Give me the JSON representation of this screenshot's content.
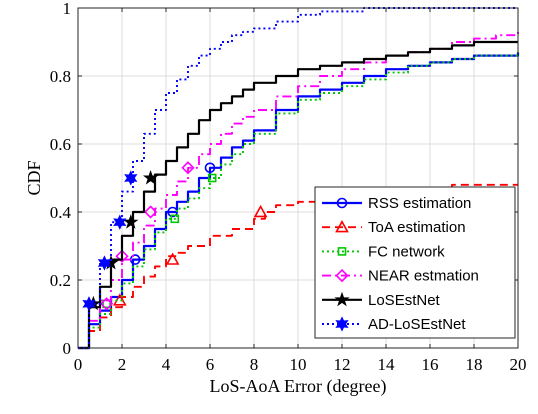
{
  "chart_data": {
    "type": "line",
    "xlabel": "LoS-AoA Error (degree)",
    "ylabel": "CDF",
    "xlim": [
      0,
      20
    ],
    "ylim": [
      0,
      1
    ],
    "xticks": [
      0,
      2,
      4,
      6,
      8,
      10,
      12,
      14,
      16,
      18,
      20
    ],
    "yticks": [
      0,
      0.2,
      0.4,
      0.6,
      0.8,
      1
    ],
    "xtick_labels": [
      "0",
      "2",
      "4",
      "6",
      "8",
      "10",
      "12",
      "14",
      "16",
      "18",
      "20"
    ],
    "ytick_labels": [
      "0",
      "0.2",
      "0.4",
      "0.6",
      "0.8",
      "1"
    ],
    "grid": true,
    "legend_position": "bottom-right",
    "series": [
      {
        "name": "RSS estimation",
        "color": "#0000ff",
        "dash": "solid",
        "marker": "circle",
        "x": [
          0,
          0.5,
          1,
          1.5,
          2,
          2.5,
          3,
          3.5,
          4,
          4.5,
          5,
          5.5,
          6,
          6.5,
          7,
          7.5,
          8,
          9,
          10,
          11,
          12,
          13,
          14,
          15,
          16,
          17,
          18,
          19,
          20
        ],
        "y": [
          0,
          0.07,
          0.11,
          0.15,
          0.2,
          0.26,
          0.3,
          0.35,
          0.4,
          0.43,
          0.46,
          0.5,
          0.53,
          0.56,
          0.59,
          0.61,
          0.64,
          0.7,
          0.74,
          0.76,
          0.78,
          0.8,
          0.82,
          0.83,
          0.84,
          0.85,
          0.86,
          0.86,
          0.87
        ],
        "marker_x": [
          2.6,
          4.3,
          6.0
        ],
        "marker_y": [
          0.26,
          0.4,
          0.53
        ]
      },
      {
        "name": "ToA estimation",
        "color": "#ff0000",
        "dash": "dash",
        "marker": "triangle",
        "x": [
          0,
          0.5,
          1,
          1.5,
          2,
          2.5,
          3,
          3.5,
          4,
          4.5,
          5,
          6,
          7,
          8,
          8.5,
          9,
          10,
          11,
          12,
          13,
          14,
          15,
          16,
          17,
          18,
          19,
          20
        ],
        "y": [
          0,
          0.05,
          0.09,
          0.12,
          0.15,
          0.18,
          0.21,
          0.24,
          0.27,
          0.28,
          0.3,
          0.33,
          0.35,
          0.38,
          0.4,
          0.42,
          0.43,
          0.44,
          0.44,
          0.45,
          0.46,
          0.46,
          0.47,
          0.48,
          0.48,
          0.48,
          0.48
        ],
        "marker_x": [
          1.9,
          4.3,
          8.3
        ],
        "marker_y": [
          0.14,
          0.26,
          0.4
        ]
      },
      {
        "name": "FC network",
        "color": "#00c800",
        "dash": "dot",
        "marker": "square",
        "x": [
          0,
          0.5,
          1,
          1.5,
          2,
          2.5,
          3,
          3.5,
          4,
          4.5,
          5,
          5.5,
          6,
          6.5,
          7,
          7.5,
          8,
          9,
          10,
          11,
          12,
          13,
          14,
          15,
          16,
          17,
          18,
          19,
          20
        ],
        "y": [
          0,
          0.06,
          0.1,
          0.14,
          0.19,
          0.24,
          0.29,
          0.34,
          0.38,
          0.41,
          0.44,
          0.47,
          0.5,
          0.54,
          0.57,
          0.6,
          0.63,
          0.69,
          0.73,
          0.75,
          0.77,
          0.79,
          0.81,
          0.83,
          0.84,
          0.85,
          0.86,
          0.86,
          0.87
        ],
        "marker_x": [
          1.3,
          4.4,
          6.1
        ],
        "marker_y": [
          0.13,
          0.38,
          0.5
        ]
      },
      {
        "name": "NEAR estmation",
        "color": "#ff00ff",
        "dash": "dashdot",
        "marker": "diamond",
        "x": [
          0,
          0.5,
          1,
          1.5,
          2,
          2.5,
          3,
          3.5,
          4,
          4.5,
          5,
          5.5,
          6,
          6.5,
          7,
          7.5,
          8,
          9,
          10,
          11,
          12,
          13,
          14,
          15,
          16,
          17,
          18,
          19,
          20
        ],
        "y": [
          0,
          0.08,
          0.14,
          0.2,
          0.26,
          0.31,
          0.36,
          0.41,
          0.45,
          0.49,
          0.53,
          0.57,
          0.6,
          0.63,
          0.66,
          0.68,
          0.7,
          0.74,
          0.77,
          0.8,
          0.82,
          0.84,
          0.86,
          0.87,
          0.88,
          0.9,
          0.91,
          0.92,
          0.93
        ],
        "marker_x": [
          1.3,
          2.0,
          3.3,
          5.0
        ],
        "marker_y": [
          0.13,
          0.27,
          0.4,
          0.53
        ]
      },
      {
        "name": "LoSEstNet",
        "color": "#000000",
        "dash": "solid",
        "marker": "star",
        "x": [
          0,
          0.5,
          1,
          1.5,
          2,
          2.5,
          3,
          3.5,
          4,
          4.5,
          5,
          5.5,
          6,
          6.5,
          7,
          7.5,
          8,
          9,
          10,
          11,
          12,
          13,
          14,
          15,
          16,
          17,
          18,
          19,
          20
        ],
        "y": [
          0,
          0.12,
          0.18,
          0.26,
          0.33,
          0.4,
          0.46,
          0.51,
          0.55,
          0.59,
          0.63,
          0.67,
          0.7,
          0.72,
          0.74,
          0.76,
          0.78,
          0.8,
          0.82,
          0.83,
          0.84,
          0.85,
          0.86,
          0.87,
          0.88,
          0.89,
          0.9,
          0.9,
          0.9
        ],
        "marker_x": [
          0.7,
          1.5,
          2.4,
          3.3
        ],
        "marker_y": [
          0.13,
          0.25,
          0.37,
          0.5
        ]
      },
      {
        "name": "AD-LoSEstNet",
        "color": "#0000ff",
        "dash": "dot",
        "marker": "hexagram",
        "x": [
          0,
          0.5,
          1,
          1.5,
          2,
          2.5,
          3,
          3.5,
          4,
          4.5,
          5,
          5.5,
          6,
          6.5,
          7,
          7.5,
          8,
          9,
          10,
          11,
          12,
          13,
          14,
          15,
          16,
          17,
          18,
          19,
          20
        ],
        "y": [
          0,
          0.13,
          0.25,
          0.37,
          0.46,
          0.55,
          0.63,
          0.7,
          0.75,
          0.79,
          0.83,
          0.86,
          0.88,
          0.9,
          0.92,
          0.93,
          0.94,
          0.96,
          0.98,
          0.99,
          0.99,
          1.0,
          1.0,
          1.0,
          1.0,
          1.0,
          1.0,
          1.0,
          1.0
        ],
        "marker_x": [
          0.5,
          1.2,
          1.9,
          2.4
        ],
        "marker_y": [
          0.13,
          0.25,
          0.37,
          0.5
        ]
      }
    ]
  }
}
